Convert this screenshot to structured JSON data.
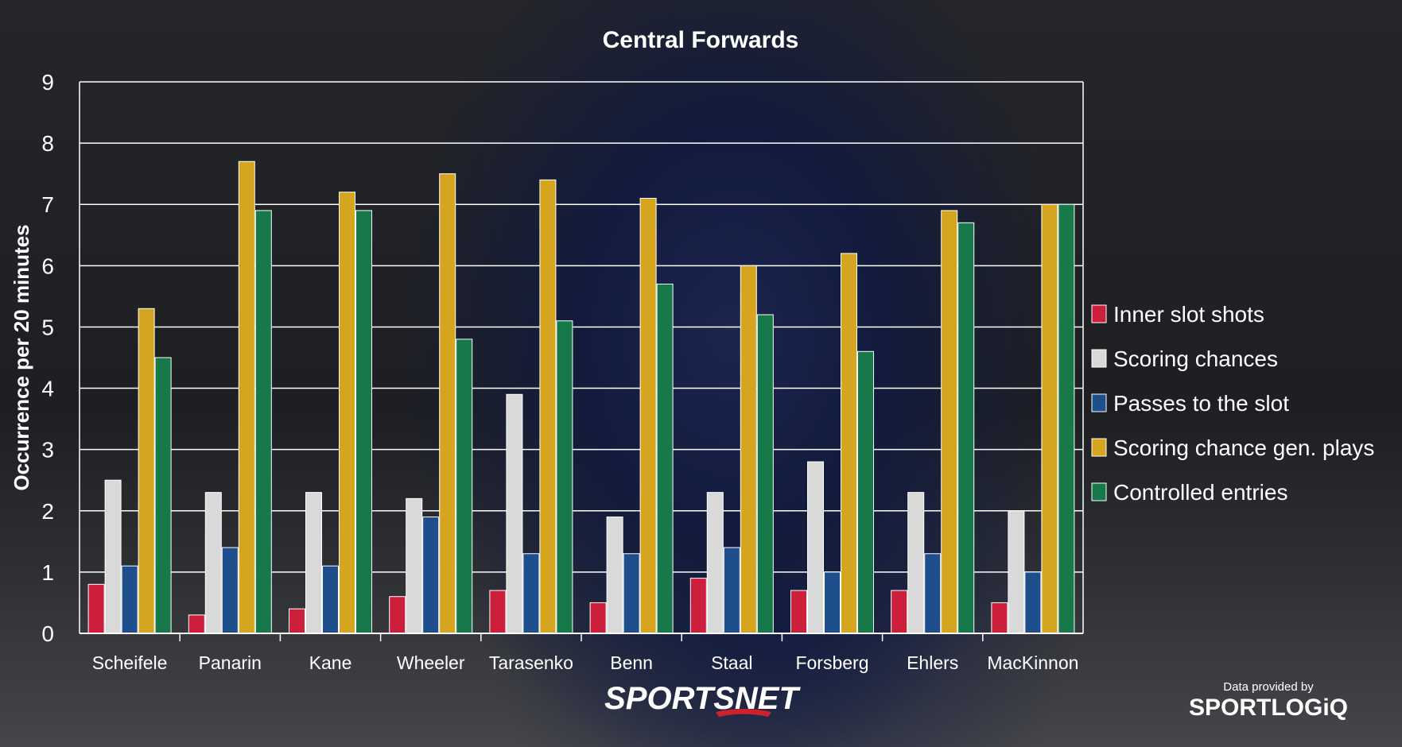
{
  "chart_data": {
    "type": "bar",
    "title": "Central Forwards",
    "xlabel": "",
    "ylabel": "Occurrence per 20 minutes",
    "ylim": [
      0,
      9
    ],
    "yticks": [
      0,
      1,
      2,
      3,
      4,
      5,
      6,
      7,
      8,
      9
    ],
    "grid": true,
    "legend_position": "right",
    "categories": [
      "Scheifele",
      "Panarin",
      "Kane",
      "Wheeler",
      "Tarasenko",
      "Benn",
      "Staal",
      "Forsberg",
      "Ehlers",
      "MacKinnon"
    ],
    "series": [
      {
        "name": "Inner slot shots",
        "color": "#cc1f3c",
        "values": [
          0.8,
          0.3,
          0.4,
          0.6,
          0.7,
          0.5,
          0.9,
          0.7,
          0.7,
          0.5
        ]
      },
      {
        "name": "Scoring chances",
        "color": "#d9d9d9",
        "values": [
          2.5,
          2.3,
          2.3,
          2.2,
          3.9,
          1.9,
          2.3,
          2.8,
          2.3,
          2.0
        ]
      },
      {
        "name": "Passes to the slot",
        "color": "#1f4e8c",
        "values": [
          1.1,
          1.4,
          1.1,
          1.9,
          1.3,
          1.3,
          1.4,
          1.0,
          1.3,
          1.0
        ]
      },
      {
        "name": "Scoring chance gen. plays",
        "color": "#d6a520",
        "values": [
          5.3,
          7.7,
          7.2,
          7.5,
          7.4,
          7.1,
          6.0,
          6.2,
          6.9,
          7.0
        ]
      },
      {
        "name": "Controlled entries",
        "color": "#17784a",
        "values": [
          4.5,
          6.9,
          6.9,
          4.8,
          5.1,
          5.7,
          5.2,
          4.6,
          6.7,
          7.0
        ]
      }
    ]
  },
  "branding": {
    "sportsnet": "SPORTSNET",
    "provided_by": "Data provided by",
    "sportlogiq": "SPORTLOGiQ"
  }
}
